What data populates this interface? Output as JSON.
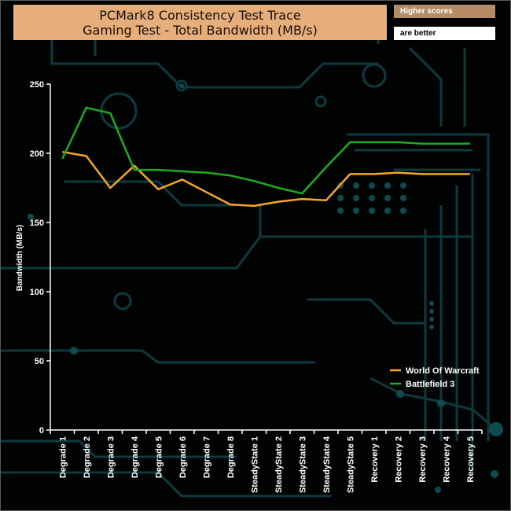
{
  "badges": {
    "higher": "Higher scores",
    "better": "are better"
  },
  "chart_data": {
    "type": "line",
    "title_lines": [
      "PCMark8 Consistency Test Trace",
      "Gaming Test - Total Bandwidth (MB/s)"
    ],
    "xlabel": "",
    "ylabel": "Bandwidth (MB/s)",
    "ylim": [
      0,
      250
    ],
    "yticks": [
      0,
      50,
      100,
      150,
      200,
      250
    ],
    "categories": [
      "Degrade 1",
      "Degrade 2",
      "Degrade 3",
      "Degrade 4",
      "Degrade 5",
      "Degrade 6",
      "Degrade 7",
      "Degrade 8",
      "SteadyState 1",
      "SteadyState 2",
      "SteadyState 3",
      "SteadyState 4",
      "SteadyState 5",
      "Recovery 1",
      "Recovery 2",
      "Recovery 3",
      "Recovery 4",
      "Recovery 5"
    ],
    "series": [
      {
        "name": "World Of Warcraft",
        "color": "#f5a623",
        "values": [
          201,
          198,
          175,
          191,
          174,
          181,
          172,
          163,
          162,
          165,
          167,
          166,
          185,
          185,
          186,
          185,
          185,
          185
        ]
      },
      {
        "name": "Battlefield 3",
        "color": "#1faa1f",
        "values": [
          196,
          233,
          229,
          188,
          188,
          187,
          186,
          184,
          180,
          175,
          171,
          190,
          208,
          208,
          208,
          207,
          207,
          207
        ]
      }
    ],
    "legend_position": "bottom-right",
    "grid": false
  }
}
